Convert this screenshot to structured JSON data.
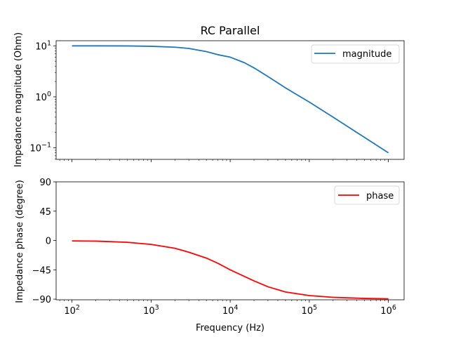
{
  "chart_data": [
    {
      "type": "line",
      "title": "RC Parallel",
      "ylabel": "Impedance magnitude (Ohm)",
      "xlabel": "",
      "xscale": "log",
      "yscale": "log",
      "xlim": [
        63,
        1580000
      ],
      "ylim": [
        0.0595,
        12.6
      ],
      "xticks": [
        {
          "value": 100,
          "base": "10",
          "exp": "2"
        },
        {
          "value": 1000,
          "base": "10",
          "exp": "3"
        },
        {
          "value": 10000,
          "base": "10",
          "exp": "4"
        },
        {
          "value": 100000,
          "base": "10",
          "exp": "5"
        },
        {
          "value": 1000000,
          "base": "10",
          "exp": "6"
        }
      ],
      "show_xtick_labels": false,
      "yticks": [
        {
          "value": 10,
          "base": "10",
          "exp": "1"
        },
        {
          "value": 1,
          "base": "10",
          "exp": "0"
        },
        {
          "value": 0.1,
          "base": "10",
          "exp": "−1"
        }
      ],
      "grid": false,
      "legend": "top-right",
      "series": [
        {
          "name": "magnitude",
          "color": "#1f77b4",
          "x": [
            100,
            200,
            500,
            1000,
            2000,
            3000,
            5000,
            7000,
            10000,
            15000,
            20000,
            30000,
            50000,
            100000,
            200000,
            500000,
            1000000
          ],
          "y": [
            10.0,
            9.99,
            9.95,
            9.8,
            9.4,
            8.9,
            7.7,
            6.7,
            6.0,
            4.7,
            3.7,
            2.5,
            1.5,
            0.79,
            0.4,
            0.16,
            0.08
          ]
        }
      ]
    },
    {
      "type": "line",
      "title": "",
      "ylabel": "Impedance phase (degree)",
      "xlabel": "Frequency (Hz)",
      "xscale": "log",
      "yscale": "linear",
      "xlim": [
        63,
        1580000
      ],
      "ylim": [
        -91,
        90
      ],
      "xticks": [
        {
          "value": 100,
          "base": "10",
          "exp": "2"
        },
        {
          "value": 1000,
          "base": "10",
          "exp": "3"
        },
        {
          "value": 10000,
          "base": "10",
          "exp": "4"
        },
        {
          "value": 100000,
          "base": "10",
          "exp": "5"
        },
        {
          "value": 1000000,
          "base": "10",
          "exp": "6"
        }
      ],
      "show_xtick_labels": true,
      "yticks": [
        {
          "value": 90,
          "label": "90"
        },
        {
          "value": 45,
          "label": "45"
        },
        {
          "value": 0,
          "label": "0"
        },
        {
          "value": -45,
          "label": "−45"
        },
        {
          "value": -90,
          "label": "−90"
        }
      ],
      "grid": false,
      "legend": "top-right",
      "series": [
        {
          "name": "phase",
          "color": "#ff0000",
          "x": [
            100,
            200,
            500,
            1000,
            2000,
            3000,
            5000,
            7000,
            10000,
            15000,
            20000,
            30000,
            50000,
            100000,
            200000,
            500000,
            1000000
          ],
          "y": [
            -0.6,
            -1.0,
            -2.8,
            -6.0,
            -12.0,
            -18.0,
            -27.0,
            -35.0,
            -45.0,
            -55.0,
            -62.0,
            -71.0,
            -79.0,
            -84.5,
            -87.2,
            -88.9,
            -89.5
          ]
        }
      ]
    }
  ]
}
